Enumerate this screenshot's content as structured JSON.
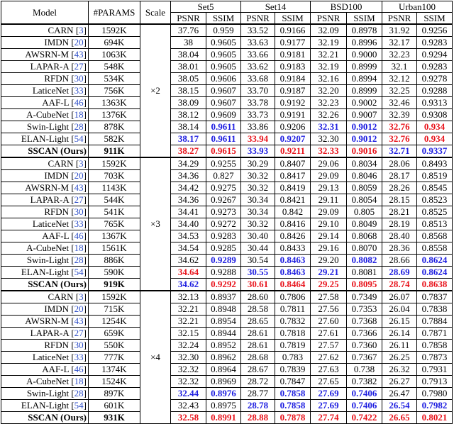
{
  "header": {
    "model": "Model",
    "params": "#PARAMS",
    "scale": "Scale",
    "datasets": [
      "Set5",
      "Set14",
      "BSD100",
      "Urban100"
    ],
    "psnr": "PSNR",
    "ssim": "SSIM"
  },
  "colors": {
    "best": "#e8141c",
    "second": "#1e1ee0",
    "cite": "#3050c8"
  },
  "groups": [
    {
      "scale": "×2",
      "rows": [
        {
          "model": "CARN",
          "cite": "3",
          "params": "1592K",
          "v": [
            "37.76",
            "0.959",
            "33.52",
            "0.9166",
            "32.09",
            "0.8978",
            "31.92",
            "0.9256"
          ],
          "s": [
            "",
            "",
            "",
            "",
            "",
            "",
            "",
            ""
          ]
        },
        {
          "model": "IMDN",
          "cite": "20",
          "params": "694K",
          "v": [
            "38",
            "0.9605",
            "33.63",
            "0.9177",
            "32.19",
            "0.8996",
            "32.17",
            "0.9283"
          ],
          "s": [
            "",
            "",
            "",
            "",
            "",
            "",
            "",
            ""
          ]
        },
        {
          "model": "AWSRN-M",
          "cite": "43",
          "params": "1063K",
          "v": [
            "38.04",
            "0.9605",
            "33.66",
            "0.9181",
            "32.21",
            "0.9000",
            "32.23",
            "0.9294"
          ],
          "s": [
            "",
            "",
            "",
            "",
            "",
            "",
            "",
            ""
          ]
        },
        {
          "model": "LAPAR-A",
          "cite": "27",
          "params": "548K",
          "v": [
            "38.01",
            "0.9605",
            "33.62",
            "0.9183",
            "32.19",
            "0.8999",
            "32.1",
            "0.9283"
          ],
          "s": [
            "",
            "",
            "",
            "",
            "",
            "",
            "",
            ""
          ]
        },
        {
          "model": "RFDN",
          "cite": "30",
          "params": "534K",
          "v": [
            "38.05",
            "0.9606",
            "33.68",
            "0.9184",
            "32.16",
            "0.8994",
            "32.12",
            "0.9278"
          ],
          "s": [
            "",
            "",
            "",
            "",
            "",
            "",
            "",
            ""
          ]
        },
        {
          "model": "LaticeNet",
          "cite": "33",
          "params": "756K",
          "v": [
            "38.15",
            "0.9607",
            "33.70",
            "0.9187",
            "32.20",
            "0.8999",
            "32.25",
            "0.9288"
          ],
          "s": [
            "",
            "",
            "",
            "",
            "",
            "",
            "",
            ""
          ]
        },
        {
          "model": "AAF-L",
          "cite": "46",
          "params": "1363K",
          "v": [
            "38.09",
            "0.9607",
            "33.78",
            "0.9192",
            "32.23",
            "0.9002",
            "32.46",
            "0.9313"
          ],
          "s": [
            "",
            "",
            "",
            "",
            "",
            "",
            "",
            ""
          ]
        },
        {
          "model": "A-CubeNet",
          "cite": "18",
          "params": "1376K",
          "v": [
            "38.12",
            "0.9609",
            "33.73",
            "0.9191",
            "32.26",
            "0.9007",
            "32.39",
            "0.9308"
          ],
          "s": [
            "",
            "",
            "",
            "",
            "",
            "",
            "",
            ""
          ]
        },
        {
          "model": "Swin-Light",
          "cite": "28",
          "params": "878K",
          "v": [
            "38.14",
            "0.9611",
            "33.86",
            "0.9206",
            "32.31",
            "0.9012",
            "32.76",
            "0.934"
          ],
          "s": [
            "",
            "b",
            "",
            "",
            "b",
            "b",
            "r",
            "r"
          ]
        },
        {
          "model": "ELAN-Light",
          "cite": "54",
          "params": "582K",
          "v": [
            "38.17",
            "0.9611",
            "33.94",
            "0.9207",
            "32.30",
            "0.9012",
            "32.76",
            "0.934"
          ],
          "s": [
            "b",
            "b",
            "r",
            "b",
            "",
            "b",
            "r",
            "r"
          ]
        },
        {
          "model": "SSCAN (Ours)",
          "cite": "",
          "params": "911K",
          "bold": true,
          "v": [
            "38.27",
            "0.9615",
            "33.93",
            "0.9211",
            "32.33",
            "0.9016",
            "32.71",
            "0.9337"
          ],
          "s": [
            "r",
            "r",
            "b",
            "r",
            "r",
            "r",
            "b",
            "b"
          ]
        }
      ]
    },
    {
      "scale": "×3",
      "rows": [
        {
          "model": "CARN",
          "cite": "3",
          "params": "1592K",
          "v": [
            "34.29",
            "0.9255",
            "30.29",
            "0.8407",
            "29.06",
            "0.8034",
            "28.06",
            "0.8493"
          ],
          "s": [
            "",
            "",
            "",
            "",
            "",
            "",
            "",
            ""
          ]
        },
        {
          "model": "IMDN",
          "cite": "20",
          "params": "703K",
          "v": [
            "34.36",
            "0.827",
            "30.32",
            "0.8417",
            "29.09",
            "0.8046",
            "28.17",
            "0.8519"
          ],
          "s": [
            "",
            "",
            "",
            "",
            "",
            "",
            "",
            ""
          ]
        },
        {
          "model": "AWSRN-M",
          "cite": "43",
          "params": "1143K",
          "v": [
            "34.42",
            "0.9275",
            "30.32",
            "0.8419",
            "29.13",
            "0.8059",
            "28.26",
            "0.8545"
          ],
          "s": [
            "",
            "",
            "",
            "",
            "",
            "",
            "",
            ""
          ]
        },
        {
          "model": "LAPAR-A",
          "cite": "27",
          "params": "544K",
          "v": [
            "34.36",
            "0.9267",
            "30.34",
            "0.8421",
            "29.11",
            "0.8054",
            "28.15",
            "0.8523"
          ],
          "s": [
            "",
            "",
            "",
            "",
            "",
            "",
            "",
            ""
          ]
        },
        {
          "model": "RFDN",
          "cite": "30",
          "params": "541K",
          "v": [
            "34.41",
            "0.9273",
            "30.34",
            "0.842",
            "29.09",
            "0.805",
            "28.21",
            "0.8525"
          ],
          "s": [
            "",
            "",
            "",
            "",
            "",
            "",
            "",
            ""
          ]
        },
        {
          "model": "LaticeNet",
          "cite": "33",
          "params": "765K",
          "v": [
            "34.40",
            "0.9272",
            "30.32",
            "0.8416",
            "29.10",
            "0.8049",
            "28.19",
            "0.8513"
          ],
          "s": [
            "",
            "",
            "",
            "",
            "",
            "",
            "",
            ""
          ]
        },
        {
          "model": "AAF-L",
          "cite": "46",
          "params": "1367K",
          "v": [
            "34.53",
            "0.9283",
            "30.40",
            "0.8426",
            "29.14",
            "0.8068",
            "28.40",
            "0.8568"
          ],
          "s": [
            "",
            "",
            "",
            "",
            "",
            "",
            "",
            ""
          ]
        },
        {
          "model": "A-CubeNet",
          "cite": "18",
          "params": "1561K",
          "v": [
            "34.54",
            "0.9285",
            "30.44",
            "0.8433",
            "29.16",
            "0.8070",
            "28.36",
            "0.8558"
          ],
          "s": [
            "",
            "",
            "",
            "",
            "",
            "",
            "",
            ""
          ]
        },
        {
          "model": "Swin-Light",
          "cite": "28",
          "params": "886K",
          "v": [
            "34.62",
            "0.9289",
            "30.54",
            "0.8463",
            "29.20",
            "0.8082",
            "28.66",
            "0.8624"
          ],
          "s": [
            "",
            "b",
            "",
            "b",
            "",
            "b",
            "",
            "b"
          ]
        },
        {
          "model": "ELAN-Light",
          "cite": "54",
          "params": "590K",
          "v": [
            "34.64",
            "0.9288",
            "30.55",
            "0.8463",
            "29.21",
            "0.8081",
            "28.69",
            "0.8624"
          ],
          "s": [
            "r",
            "",
            "b",
            "b",
            "b",
            "",
            "b",
            "b"
          ]
        },
        {
          "model": "SSCAN (Ours)",
          "cite": "",
          "params": "919K",
          "bold": true,
          "v": [
            "34.62",
            "0.9292",
            "30.61",
            "0.8464",
            "29.25",
            "0.8095",
            "28.74",
            "0.8638"
          ],
          "s": [
            "b",
            "r",
            "r",
            "r",
            "r",
            "r",
            "r",
            "r"
          ]
        }
      ]
    },
    {
      "scale": "×4",
      "rows": [
        {
          "model": "CARN",
          "cite": "3",
          "params": "1592K",
          "v": [
            "32.13",
            "0.8937",
            "28.60",
            "0.7806",
            "27.58",
            "0.7349",
            "26.07",
            "0.7837"
          ],
          "s": [
            "",
            "",
            "",
            "",
            "",
            "",
            "",
            ""
          ]
        },
        {
          "model": "IMDN",
          "cite": "20",
          "params": "715K",
          "v": [
            "32.21",
            "0.8948",
            "28.58",
            "0.7811",
            "27.56",
            "0.7353",
            "26.04",
            "0.7838"
          ],
          "s": [
            "",
            "",
            "",
            "",
            "",
            "",
            "",
            ""
          ]
        },
        {
          "model": "AWSRN-M",
          "cite": "43",
          "params": "1254K",
          "v": [
            "32.21",
            "0.8954",
            "28.65",
            "0.7832",
            "27.60",
            "0.7368",
            "26.15",
            "0.7884"
          ],
          "s": [
            "",
            "",
            "",
            "",
            "",
            "",
            "",
            ""
          ]
        },
        {
          "model": "LAPAR-A",
          "cite": "27",
          "params": "659K",
          "v": [
            "32.15",
            "0.8944",
            "28.61",
            "0.7818",
            "27.61",
            "0.7366",
            "26.14",
            "0.7871"
          ],
          "s": [
            "",
            "",
            "",
            "",
            "",
            "",
            "",
            ""
          ]
        },
        {
          "model": "RFDN",
          "cite": "30",
          "params": "550K",
          "v": [
            "32.24",
            "0.8952",
            "28.61",
            "0.7819",
            "27.57",
            "0.7360",
            "26.11",
            "0.7858"
          ],
          "s": [
            "",
            "",
            "",
            "",
            "",
            "",
            "",
            ""
          ]
        },
        {
          "model": "LaticeNet",
          "cite": "33",
          "params": "777K",
          "v": [
            "32.30",
            "0.8962",
            "28.68",
            "0.783",
            "27.62",
            "0.7367",
            "26.25",
            "0.7873"
          ],
          "s": [
            "",
            "",
            "",
            "",
            "",
            "",
            "",
            ""
          ]
        },
        {
          "model": "AAF-L",
          "cite": "46",
          "params": "1374K",
          "v": [
            "32.32",
            "0.8964",
            "28.67",
            "0.7839",
            "27.63",
            "0.738",
            "26.32",
            "0.7931"
          ],
          "s": [
            "",
            "",
            "",
            "",
            "",
            "",
            "",
            ""
          ]
        },
        {
          "model": "A-CubeNet",
          "cite": "18",
          "params": "1524K",
          "v": [
            "32.32",
            "0.8969",
            "28.72",
            "0.7847",
            "27.65",
            "0.7382",
            "26.27",
            "0.7913"
          ],
          "s": [
            "",
            "",
            "",
            "",
            "",
            "",
            "",
            ""
          ]
        },
        {
          "model": "Swin-Light",
          "cite": "28",
          "params": "897K",
          "v": [
            "32.44",
            "0.8976",
            "28.77",
            "0.7858",
            "27.69",
            "0.7406",
            "26.47",
            "0.7980"
          ],
          "s": [
            "b",
            "b",
            "",
            "b",
            "b",
            "b",
            "",
            ""
          ]
        },
        {
          "model": "ELAN-Light",
          "cite": "54",
          "params": "601K",
          "v": [
            "32.43",
            "0.8975",
            "28.78",
            "0.7858",
            "27.69",
            "0.7406",
            "26.54",
            "0.7982"
          ],
          "s": [
            "",
            "",
            "b",
            "b",
            "b",
            "b",
            "b",
            "b"
          ]
        },
        {
          "model": "SSCAN (Ours)",
          "cite": "",
          "params": "931K",
          "bold": true,
          "v": [
            "32.58",
            "0.8991",
            "28.88",
            "0.7878",
            "27.74",
            "0.7422",
            "26.65",
            "0.8021"
          ],
          "s": [
            "r",
            "r",
            "r",
            "r",
            "r",
            "r",
            "r",
            "r"
          ]
        }
      ]
    }
  ]
}
